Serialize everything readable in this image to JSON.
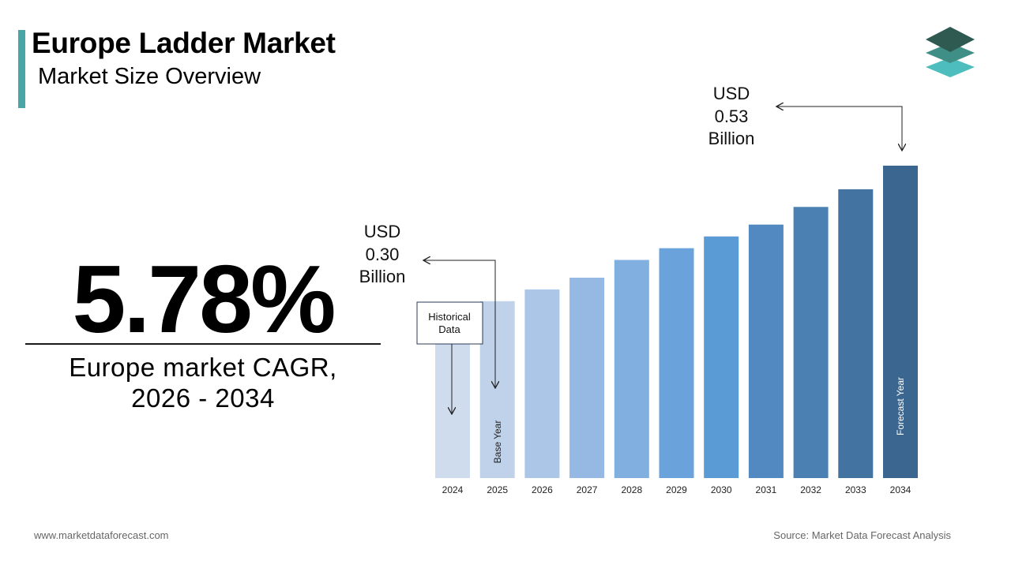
{
  "header": {
    "title": "Europe Ladder Market",
    "subtitle": "Market Size Overview"
  },
  "cagr": {
    "value": "5.78%",
    "label_line1": "Europe market CAGR,",
    "label_line2": "2026 - 2034"
  },
  "callouts": {
    "start": {
      "line1": "USD",
      "line2": "0.30",
      "line3": "Billion"
    },
    "end": {
      "line1": "USD",
      "line2": "0.53",
      "line3": "Billion"
    },
    "historical": {
      "line1": "Historical",
      "line2": "Data"
    },
    "base_year": "Base Year",
    "forecast_year": "Forecast Year"
  },
  "footer": {
    "website": "www.marketdataforecast.com",
    "source": "Source: Market Data Forecast Analysis"
  },
  "logo_icon": "stacked-layers-icon",
  "chart_data": {
    "type": "bar",
    "title": "",
    "xlabel": "",
    "ylabel": "",
    "unit": "USD Billion",
    "categories": [
      "2024",
      "2025",
      "2026",
      "2027",
      "2028",
      "2029",
      "2030",
      "2031",
      "2032",
      "2033",
      "2034"
    ],
    "values": [
      0.28,
      0.3,
      0.32,
      0.34,
      0.37,
      0.39,
      0.41,
      0.43,
      0.46,
      0.49,
      0.53
    ],
    "labeled_values": {
      "2025": "0.30",
      "2034": "0.53"
    },
    "ylim": [
      0,
      0.53
    ],
    "grid": false,
    "legend": "none",
    "colors": [
      "#cfdcee",
      "#bfd2ea",
      "#abc6e6",
      "#95b9e2",
      "#80afe0",
      "#6aa2db",
      "#5b9bd5",
      "#5189c0",
      "#4b80b2",
      "#4373a0",
      "#3b6690"
    ]
  }
}
